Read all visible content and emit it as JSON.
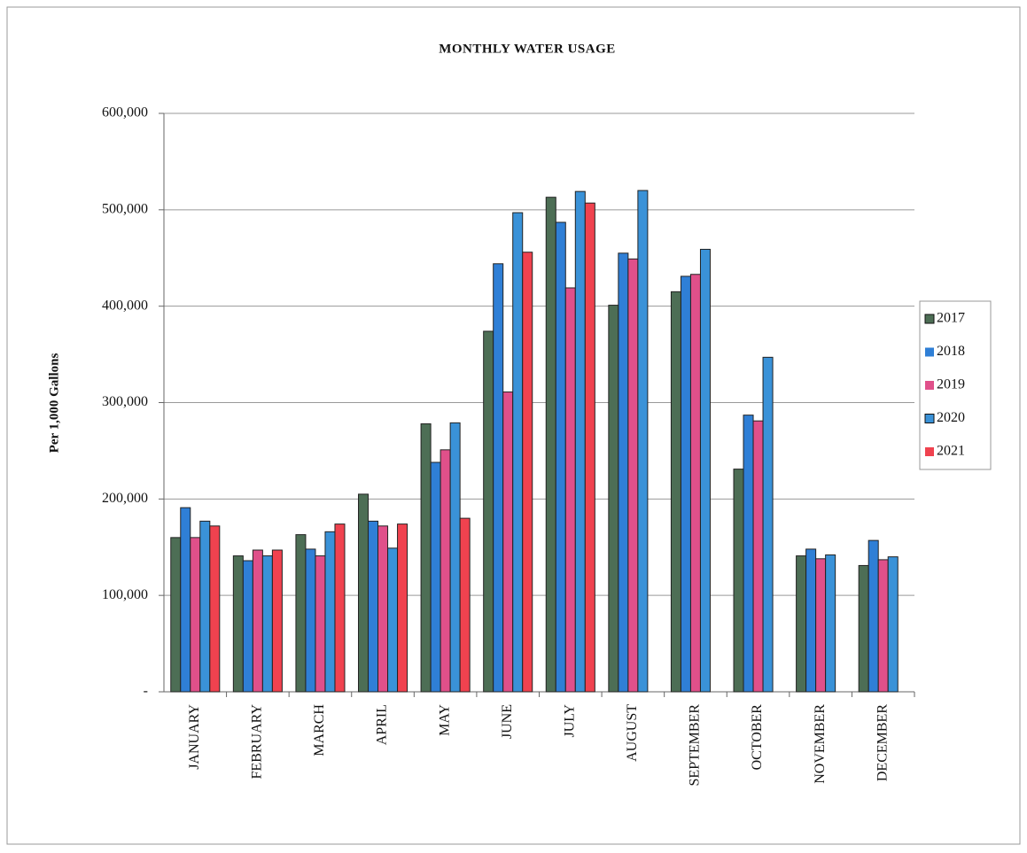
{
  "chart_data": {
    "type": "bar",
    "title": "MONTHLY WATER USAGE",
    "y_label": "Per 1,000 Gallons",
    "categories": [
      "JANUARY",
      "FEBRUARY",
      "MARCH",
      "APRIL",
      "MAY",
      "JUNE",
      "JULY",
      "AUGUST",
      "SEPTEMBER",
      "OCTOBER",
      "NOVEMBER",
      "DECEMBER"
    ],
    "series": [
      {
        "name": "2017",
        "color": "#4d6e55",
        "values": [
          160000,
          141000,
          163000,
          205000,
          278000,
          374000,
          513000,
          401000,
          415000,
          231000,
          141000,
          131000
        ]
      },
      {
        "name": "2018",
        "color": "#2f7fd6",
        "values": [
          191000,
          136000,
          148000,
          177000,
          238000,
          444000,
          487000,
          455000,
          431000,
          287000,
          148000,
          157000
        ]
      },
      {
        "name": "2019",
        "color": "#e0508a",
        "values": [
          160000,
          147000,
          141000,
          172000,
          251000,
          311000,
          419000,
          449000,
          433000,
          281000,
          138000,
          137000
        ]
      },
      {
        "name": "2020",
        "color": "#3a92d8",
        "values": [
          177000,
          141000,
          166000,
          149000,
          279000,
          497000,
          519000,
          520000,
          459000,
          347000,
          142000,
          140000
        ]
      },
      {
        "name": "2021",
        "color": "#f0424f",
        "values": [
          172000,
          147000,
          174000,
          174000,
          180000,
          456000,
          507000,
          null,
          null,
          null,
          null,
          null
        ]
      }
    ],
    "ylim": [
      0,
      600000
    ],
    "yticks": [
      {
        "value": 0,
        "label": "-"
      },
      {
        "value": 100000,
        "label": "100,000"
      },
      {
        "value": 200000,
        "label": "200,000"
      },
      {
        "value": 300000,
        "label": "300,000"
      },
      {
        "value": 400000,
        "label": "400,000"
      },
      {
        "value": 500000,
        "label": "500,000"
      },
      {
        "value": 600000,
        "label": "600,000"
      }
    ],
    "grid": true,
    "legend": "right"
  }
}
